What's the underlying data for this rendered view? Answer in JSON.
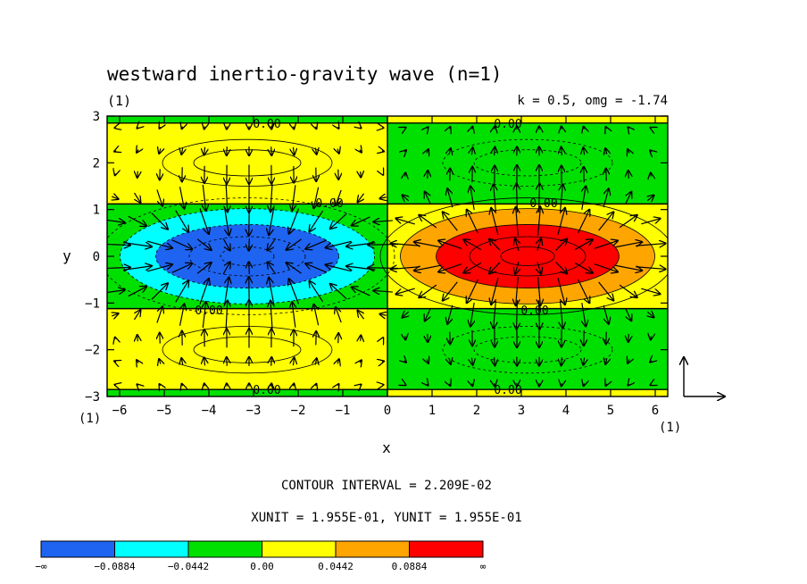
{
  "title": "westward inertio-gravity wave (n=1)",
  "panel_label_top": "(1)",
  "panel_label_bottom_left": "(1)",
  "panel_label_bottom_right": "(1)",
  "subtitle_right": "k = 0.5, omg = -1.74",
  "contour_interval": "CONTOUR INTERVAL = 2.209E-02",
  "units_text": "XUNIT = 1.955E-01, YUNIT = 1.955E-01",
  "colors": {
    "blue": "#1e64f0",
    "cyan": "#00ffff",
    "green": "#00e000",
    "yellow": "#ffff00",
    "orange": "#ffa500",
    "red": "#ff0000"
  },
  "chart_data": {
    "type": "heatmap",
    "title": "westward inertio-gravity wave (n=1)",
    "xlabel": "x",
    "ylabel": "y",
    "xlim": [
      -6.28,
      6.28
    ],
    "ylim": [
      -3,
      3
    ],
    "xticks": [
      "-6",
      "-5",
      "-4",
      "-3",
      "-2",
      "-1",
      "0",
      "1",
      "2",
      "3",
      "4",
      "5",
      "6"
    ],
    "yticks": [
      "-3",
      "-2",
      "-1",
      "0",
      "1",
      "2",
      "3"
    ],
    "contour_labels": [
      {
        "x": -2.7,
        "y": 2.85,
        "text": "0.00"
      },
      {
        "x": -1.3,
        "y": 1.15,
        "text": "0.00"
      },
      {
        "x": -4.0,
        "y": -1.15,
        "text": "0.00"
      },
      {
        "x": -2.7,
        "y": -2.85,
        "text": "0.00"
      },
      {
        "x": 2.7,
        "y": 2.85,
        "text": "0.00"
      },
      {
        "x": 3.5,
        "y": 1.15,
        "text": "0.00"
      },
      {
        "x": 3.3,
        "y": -1.15,
        "text": "0.00"
      },
      {
        "x": 2.7,
        "y": -2.85,
        "text": "0.00"
      }
    ],
    "colorbar": {
      "labels": [
        "−∞",
        "−0.0884",
        "−0.0442",
        "0.00",
        "0.0442",
        "0.0884",
        "∞"
      ],
      "levels": [
        -0.0884,
        -0.0442,
        0.0,
        0.0442,
        0.0884
      ],
      "colors": [
        "#1e64f0",
        "#00ffff",
        "#00e000",
        "#ffff00",
        "#ffa500",
        "#ff0000"
      ]
    },
    "vector_unit": {
      "x": "1.955E-01",
      "y": "1.955E-01"
    }
  }
}
